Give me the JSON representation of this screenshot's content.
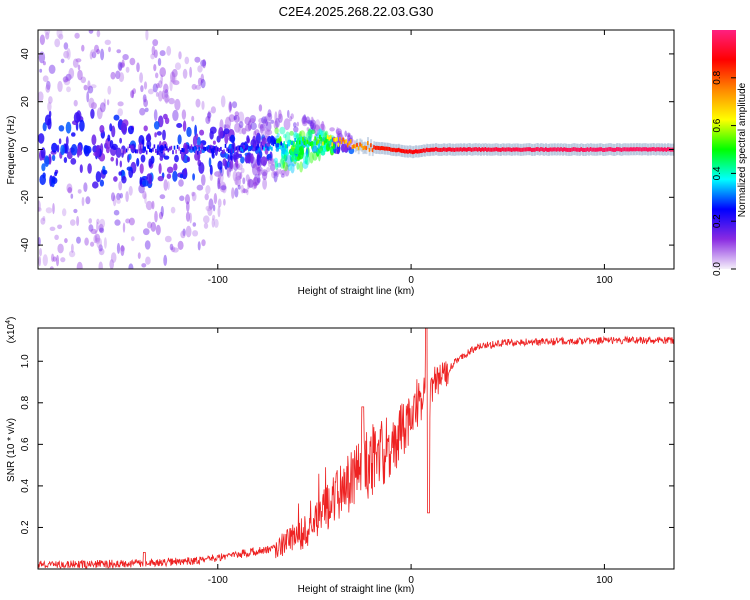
{
  "title": "C2E4.2025.268.22.03.G30",
  "colors": {
    "snr_line": "#ee2222",
    "axis": "#000000",
    "background": "#ffffff"
  },
  "chart_data": [
    {
      "type": "heatmap",
      "name": "spectrogram",
      "xlabel": "Height of straight line (km)",
      "ylabel": "Frequency (Hz)",
      "xlim": [
        -193,
        136
      ],
      "ylim": [
        -50,
        50
      ],
      "xticks": [
        -100,
        0,
        100
      ],
      "yticks": [
        -40,
        -20,
        0,
        20,
        40
      ],
      "colorbar": {
        "label": "Normalized spectral amplitude",
        "range": [
          0,
          1
        ],
        "ticks": [
          0.0,
          0.2,
          0.4,
          0.6,
          0.8
        ],
        "colormap": [
          "#f5f0fa",
          "#8a2be2",
          "#0000ff",
          "#00ffff",
          "#00ff00",
          "#ffff00",
          "#ff8800",
          "#ff0000",
          "#ff2080"
        ]
      },
      "carrier": [
        {
          "x": -193,
          "f": 0,
          "a": 0.1
        },
        {
          "x": -150,
          "f": 0,
          "a": 0.15
        },
        {
          "x": -110,
          "f": 0,
          "a": 0.2
        },
        {
          "x": -80,
          "f": 1,
          "a": 0.25
        },
        {
          "x": -60,
          "f": 3,
          "a": 0.4
        },
        {
          "x": -45,
          "f": 4,
          "a": 0.55
        },
        {
          "x": -35,
          "f": 3,
          "a": 0.75
        },
        {
          "x": -20,
          "f": 1,
          "a": 0.85
        },
        {
          "x": 0,
          "f": -1,
          "a": 0.88
        },
        {
          "x": 10,
          "f": 0,
          "a": 0.9
        },
        {
          "x": 20,
          "f": 0,
          "a": 0.92
        },
        {
          "x": 60,
          "f": 0,
          "a": 0.95
        },
        {
          "x": 100,
          "f": 0,
          "a": 0.97
        },
        {
          "x": 136,
          "f": 0,
          "a": 0.97
        }
      ],
      "noise_extent_hz": [
        {
          "x": -193,
          "spread": 50
        },
        {
          "x": -140,
          "spread": 50
        },
        {
          "x": -110,
          "spread": 42
        },
        {
          "x": -90,
          "spread": 20
        },
        {
          "x": -60,
          "spread": 12
        },
        {
          "x": -45,
          "spread": 6
        },
        {
          "x": -30,
          "spread": 3
        },
        {
          "x": 0,
          "spread": 2
        },
        {
          "x": 136,
          "spread": 2
        }
      ]
    },
    {
      "type": "line",
      "name": "snr",
      "xlabel": "Height of straight line (km)",
      "ylabel": "SNR (10 * v/v)",
      "scale_label": "(x10",
      "scale_exponent": "4",
      "xlim": [
        -193,
        136
      ],
      "ylim": [
        0,
        1.16
      ],
      "xticks": [
        -100,
        0,
        100
      ],
      "yticks": [
        0.2,
        0.4,
        0.6,
        0.8,
        1.0
      ],
      "series": [
        {
          "name": "SNR",
          "envelope": [
            {
              "x": -193,
              "y": 0.02
            },
            {
              "x": -150,
              "y": 0.025
            },
            {
              "x": -110,
              "y": 0.04
            },
            {
              "x": -90,
              "y": 0.07
            },
            {
              "x": -70,
              "y": 0.1
            },
            {
              "x": -55,
              "y": 0.18
            },
            {
              "x": -45,
              "y": 0.28
            },
            {
              "x": -35,
              "y": 0.38
            },
            {
              "x": -25,
              "y": 0.48
            },
            {
              "x": -15,
              "y": 0.55
            },
            {
              "x": -5,
              "y": 0.65
            },
            {
              "x": 5,
              "y": 0.8
            },
            {
              "x": 15,
              "y": 0.92
            },
            {
              "x": 25,
              "y": 1.02
            },
            {
              "x": 35,
              "y": 1.07
            },
            {
              "x": 50,
              "y": 1.09
            },
            {
              "x": 100,
              "y": 1.1
            },
            {
              "x": 136,
              "y": 1.1
            }
          ],
          "features": [
            {
              "x": 8,
              "y": 1.16
            },
            {
              "x": 9,
              "y": 0.27
            },
            {
              "x": -25,
              "y": 0.78
            },
            {
              "x": -138,
              "y": 0.08
            }
          ]
        }
      ]
    }
  ]
}
